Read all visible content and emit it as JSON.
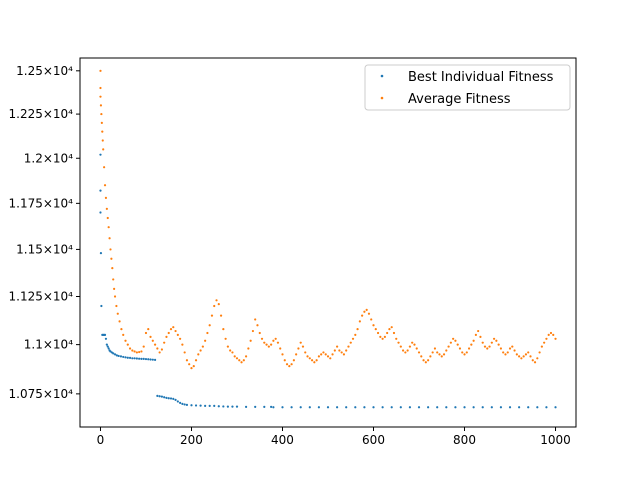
{
  "chart_data": {
    "type": "scatter",
    "title": "",
    "xlabel": "",
    "ylabel": "",
    "xlim": [
      -45,
      1045
    ],
    "ylim": [
      10585,
      12575
    ],
    "y_scale": "log",
    "grid": false,
    "legend_placement": "top-right",
    "x_ticks": [
      0,
      200,
      400,
      600,
      800,
      1000
    ],
    "x_tick_labels": [
      "0",
      "200",
      "400",
      "600",
      "800",
      "1000"
    ],
    "y_ticks": [
      10750,
      11000,
      11250,
      11500,
      11750,
      12000,
      12250,
      12500
    ],
    "y_tick_labels": [
      "1.075×10⁴",
      "1.1×10⁴",
      "1.125×10⁴",
      "1.15×10⁴",
      "1.175×10⁴",
      "1.2×10⁴",
      "1.225×10⁴",
      "1.25×10⁴"
    ],
    "series": [
      {
        "name": "Best Individual Fitness",
        "color": "#1f77b4",
        "points": [
          [
            0,
            12020
          ],
          [
            0,
            11820
          ],
          [
            0,
            11700
          ],
          [
            1,
            11480
          ],
          [
            2,
            11200
          ],
          [
            4,
            11050
          ],
          [
            6,
            11050
          ],
          [
            8,
            11050
          ],
          [
            10,
            11050
          ],
          [
            12,
            11030
          ],
          [
            14,
            11000
          ],
          [
            16,
            10990
          ],
          [
            18,
            10980
          ],
          [
            20,
            10970
          ],
          [
            22,
            10965
          ],
          [
            25,
            10960
          ],
          [
            28,
            10955
          ],
          [
            32,
            10950
          ],
          [
            36,
            10945
          ],
          [
            40,
            10942
          ],
          [
            45,
            10940
          ],
          [
            50,
            10937
          ],
          [
            55,
            10935
          ],
          [
            60,
            10933
          ],
          [
            65,
            10932
          ],
          [
            70,
            10930
          ],
          [
            75,
            10930
          ],
          [
            80,
            10929
          ],
          [
            85,
            10928
          ],
          [
            90,
            10927
          ],
          [
            95,
            10927
          ],
          [
            100,
            10926
          ],
          [
            105,
            10925
          ],
          [
            110,
            10924
          ],
          [
            115,
            10923
          ],
          [
            120,
            10922
          ],
          [
            125,
            10740
          ],
          [
            130,
            10738
          ],
          [
            135,
            10736
          ],
          [
            140,
            10733
          ],
          [
            145,
            10730
          ],
          [
            150,
            10728
          ],
          [
            155,
            10727
          ],
          [
            160,
            10725
          ],
          [
            165,
            10720
          ],
          [
            170,
            10712
          ],
          [
            175,
            10705
          ],
          [
            180,
            10700
          ],
          [
            185,
            10697
          ],
          [
            190,
            10695
          ],
          [
            200,
            10693
          ],
          [
            210,
            10692
          ],
          [
            220,
            10691
          ],
          [
            230,
            10690
          ],
          [
            240,
            10690
          ],
          [
            250,
            10690
          ],
          [
            260,
            10688
          ],
          [
            270,
            10687
          ],
          [
            280,
            10686
          ],
          [
            290,
            10686
          ],
          [
            300,
            10686
          ],
          [
            320,
            10685
          ],
          [
            340,
            10685
          ],
          [
            360,
            10685
          ],
          [
            375,
            10685
          ],
          [
            380,
            10683
          ],
          [
            400,
            10683
          ],
          [
            420,
            10683
          ],
          [
            440,
            10683
          ],
          [
            460,
            10683
          ],
          [
            480,
            10683
          ],
          [
            500,
            10683
          ],
          [
            520,
            10683
          ],
          [
            540,
            10683
          ],
          [
            560,
            10683
          ],
          [
            580,
            10683
          ],
          [
            600,
            10683
          ],
          [
            620,
            10683
          ],
          [
            640,
            10683
          ],
          [
            660,
            10683
          ],
          [
            680,
            10683
          ],
          [
            700,
            10683
          ],
          [
            720,
            10683
          ],
          [
            740,
            10683
          ],
          [
            760,
            10683
          ],
          [
            780,
            10683
          ],
          [
            800,
            10683
          ],
          [
            820,
            10683
          ],
          [
            840,
            10683
          ],
          [
            860,
            10683
          ],
          [
            880,
            10683
          ],
          [
            900,
            10683
          ],
          [
            920,
            10683
          ],
          [
            940,
            10683
          ],
          [
            960,
            10683
          ],
          [
            980,
            10683
          ],
          [
            1000,
            10683
          ]
        ]
      },
      {
        "name": "Average Fitness",
        "color": "#ff7f0e",
        "points": [
          [
            0,
            12500
          ],
          [
            0,
            12400
          ],
          [
            0,
            12350
          ],
          [
            1,
            12300
          ],
          [
            2,
            12250
          ],
          [
            3,
            12200
          ],
          [
            4,
            12150
          ],
          [
            5,
            12100
          ],
          [
            6,
            12050
          ],
          [
            8,
            11950
          ],
          [
            10,
            11850
          ],
          [
            12,
            11780
          ],
          [
            14,
            11720
          ],
          [
            16,
            11670
          ],
          [
            18,
            11620
          ],
          [
            20,
            11560
          ],
          [
            22,
            11500
          ],
          [
            24,
            11450
          ],
          [
            26,
            11400
          ],
          [
            28,
            11340
          ],
          [
            30,
            11290
          ],
          [
            32,
            11250
          ],
          [
            35,
            11200
          ],
          [
            38,
            11160
          ],
          [
            42,
            11120
          ],
          [
            46,
            11080
          ],
          [
            50,
            11050
          ],
          [
            55,
            11020
          ],
          [
            60,
            11000
          ],
          [
            65,
            10980
          ],
          [
            70,
            10970
          ],
          [
            75,
            10965
          ],
          [
            80,
            10960
          ],
          [
            85,
            10962
          ],
          [
            90,
            10965
          ],
          [
            95,
            10990
          ],
          [
            100,
            11060
          ],
          [
            105,
            11080
          ],
          [
            110,
            11040
          ],
          [
            115,
            11020
          ],
          [
            120,
            11000
          ],
          [
            125,
            10980
          ],
          [
            130,
            10960
          ],
          [
            135,
            10975
          ],
          [
            140,
            11010
          ],
          [
            145,
            11040
          ],
          [
            150,
            11060
          ],
          [
            155,
            11080
          ],
          [
            160,
            11090
          ],
          [
            165,
            11070
          ],
          [
            170,
            11050
          ],
          [
            175,
            11030
          ],
          [
            180,
            11000
          ],
          [
            185,
            10960
          ],
          [
            190,
            10920
          ],
          [
            195,
            10900
          ],
          [
            200,
            10880
          ],
          [
            205,
            10890
          ],
          [
            210,
            10920
          ],
          [
            215,
            10950
          ],
          [
            220,
            10970
          ],
          [
            225,
            10990
          ],
          [
            230,
            11020
          ],
          [
            235,
            11060
          ],
          [
            240,
            11100
          ],
          [
            245,
            11150
          ],
          [
            250,
            11200
          ],
          [
            255,
            11230
          ],
          [
            260,
            11210
          ],
          [
            265,
            11150
          ],
          [
            270,
            11080
          ],
          [
            275,
            11030
          ],
          [
            280,
            10990
          ],
          [
            285,
            10970
          ],
          [
            290,
            10960
          ],
          [
            295,
            10940
          ],
          [
            300,
            10930
          ],
          [
            305,
            10920
          ],
          [
            310,
            10910
          ],
          [
            315,
            10920
          ],
          [
            320,
            10940
          ],
          [
            325,
            10980
          ],
          [
            330,
            11020
          ],
          [
            335,
            11070
          ],
          [
            340,
            11130
          ],
          [
            345,
            11100
          ],
          [
            350,
            11060
          ],
          [
            355,
            11030
          ],
          [
            360,
            11010
          ],
          [
            365,
            11000
          ],
          [
            370,
            10990
          ],
          [
            375,
            11000
          ],
          [
            380,
            11020
          ],
          [
            385,
            11030
          ],
          [
            390,
            11010
          ],
          [
            395,
            10980
          ],
          [
            400,
            10950
          ],
          [
            405,
            10920
          ],
          [
            410,
            10900
          ],
          [
            415,
            10890
          ],
          [
            420,
            10900
          ],
          [
            425,
            10920
          ],
          [
            430,
            10950
          ],
          [
            435,
            10980
          ],
          [
            440,
            11010
          ],
          [
            445,
            10990
          ],
          [
            450,
            10960
          ],
          [
            455,
            10940
          ],
          [
            460,
            10930
          ],
          [
            465,
            10920
          ],
          [
            470,
            10910
          ],
          [
            475,
            10920
          ],
          [
            480,
            10940
          ],
          [
            485,
            10950
          ],
          [
            490,
            10960
          ],
          [
            495,
            10950
          ],
          [
            500,
            10940
          ],
          [
            505,
            10930
          ],
          [
            510,
            10950
          ],
          [
            515,
            10970
          ],
          [
            520,
            10990
          ],
          [
            525,
            10970
          ],
          [
            530,
            10960
          ],
          [
            535,
            10950
          ],
          [
            540,
            10970
          ],
          [
            545,
            10990
          ],
          [
            550,
            11010
          ],
          [
            555,
            11030
          ],
          [
            560,
            11050
          ],
          [
            565,
            11080
          ],
          [
            570,
            11120
          ],
          [
            575,
            11150
          ],
          [
            580,
            11170
          ],
          [
            585,
            11180
          ],
          [
            590,
            11160
          ],
          [
            595,
            11130
          ],
          [
            600,
            11100
          ],
          [
            605,
            11080
          ],
          [
            610,
            11060
          ],
          [
            615,
            11040
          ],
          [
            620,
            11030
          ],
          [
            625,
            11040
          ],
          [
            630,
            11060
          ],
          [
            635,
            11080
          ],
          [
            640,
            11090
          ],
          [
            645,
            11060
          ],
          [
            650,
            11030
          ],
          [
            655,
            11010
          ],
          [
            660,
            10990
          ],
          [
            665,
            10970
          ],
          [
            670,
            10960
          ],
          [
            675,
            10970
          ],
          [
            680,
            10990
          ],
          [
            685,
            11010
          ],
          [
            690,
            11000
          ],
          [
            695,
            10980
          ],
          [
            700,
            10960
          ],
          [
            705,
            10940
          ],
          [
            710,
            10920
          ],
          [
            715,
            10910
          ],
          [
            720,
            10920
          ],
          [
            725,
            10940
          ],
          [
            730,
            10960
          ],
          [
            735,
            10980
          ],
          [
            740,
            10960
          ],
          [
            745,
            10950
          ],
          [
            750,
            10940
          ],
          [
            755,
            10950
          ],
          [
            760,
            10970
          ],
          [
            765,
            10990
          ],
          [
            770,
            11010
          ],
          [
            775,
            11030
          ],
          [
            780,
            11020
          ],
          [
            785,
            11000
          ],
          [
            790,
            10980
          ],
          [
            795,
            10960
          ],
          [
            800,
            10950
          ],
          [
            805,
            10960
          ],
          [
            810,
            10980
          ],
          [
            815,
            11000
          ],
          [
            820,
            11020
          ],
          [
            825,
            11050
          ],
          [
            830,
            11070
          ],
          [
            835,
            11040
          ],
          [
            840,
            11010
          ],
          [
            845,
            10990
          ],
          [
            850,
            10980
          ],
          [
            855,
            10990
          ],
          [
            860,
            11010
          ],
          [
            865,
            11030
          ],
          [
            870,
            11020
          ],
          [
            875,
            11000
          ],
          [
            880,
            10980
          ],
          [
            885,
            10960
          ],
          [
            890,
            10950
          ],
          [
            895,
            10960
          ],
          [
            900,
            10980
          ],
          [
            905,
            10990
          ],
          [
            910,
            10970
          ],
          [
            915,
            10950
          ],
          [
            920,
            10940
          ],
          [
            925,
            10930
          ],
          [
            930,
            10940
          ],
          [
            935,
            10950
          ],
          [
            940,
            10960
          ],
          [
            945,
            10940
          ],
          [
            950,
            10920
          ],
          [
            955,
            10910
          ],
          [
            960,
            10930
          ],
          [
            965,
            10960
          ],
          [
            970,
            10990
          ],
          [
            975,
            11010
          ],
          [
            980,
            11030
          ],
          [
            985,
            11050
          ],
          [
            990,
            11060
          ],
          [
            995,
            11050
          ],
          [
            1000,
            11030
          ]
        ]
      }
    ]
  }
}
